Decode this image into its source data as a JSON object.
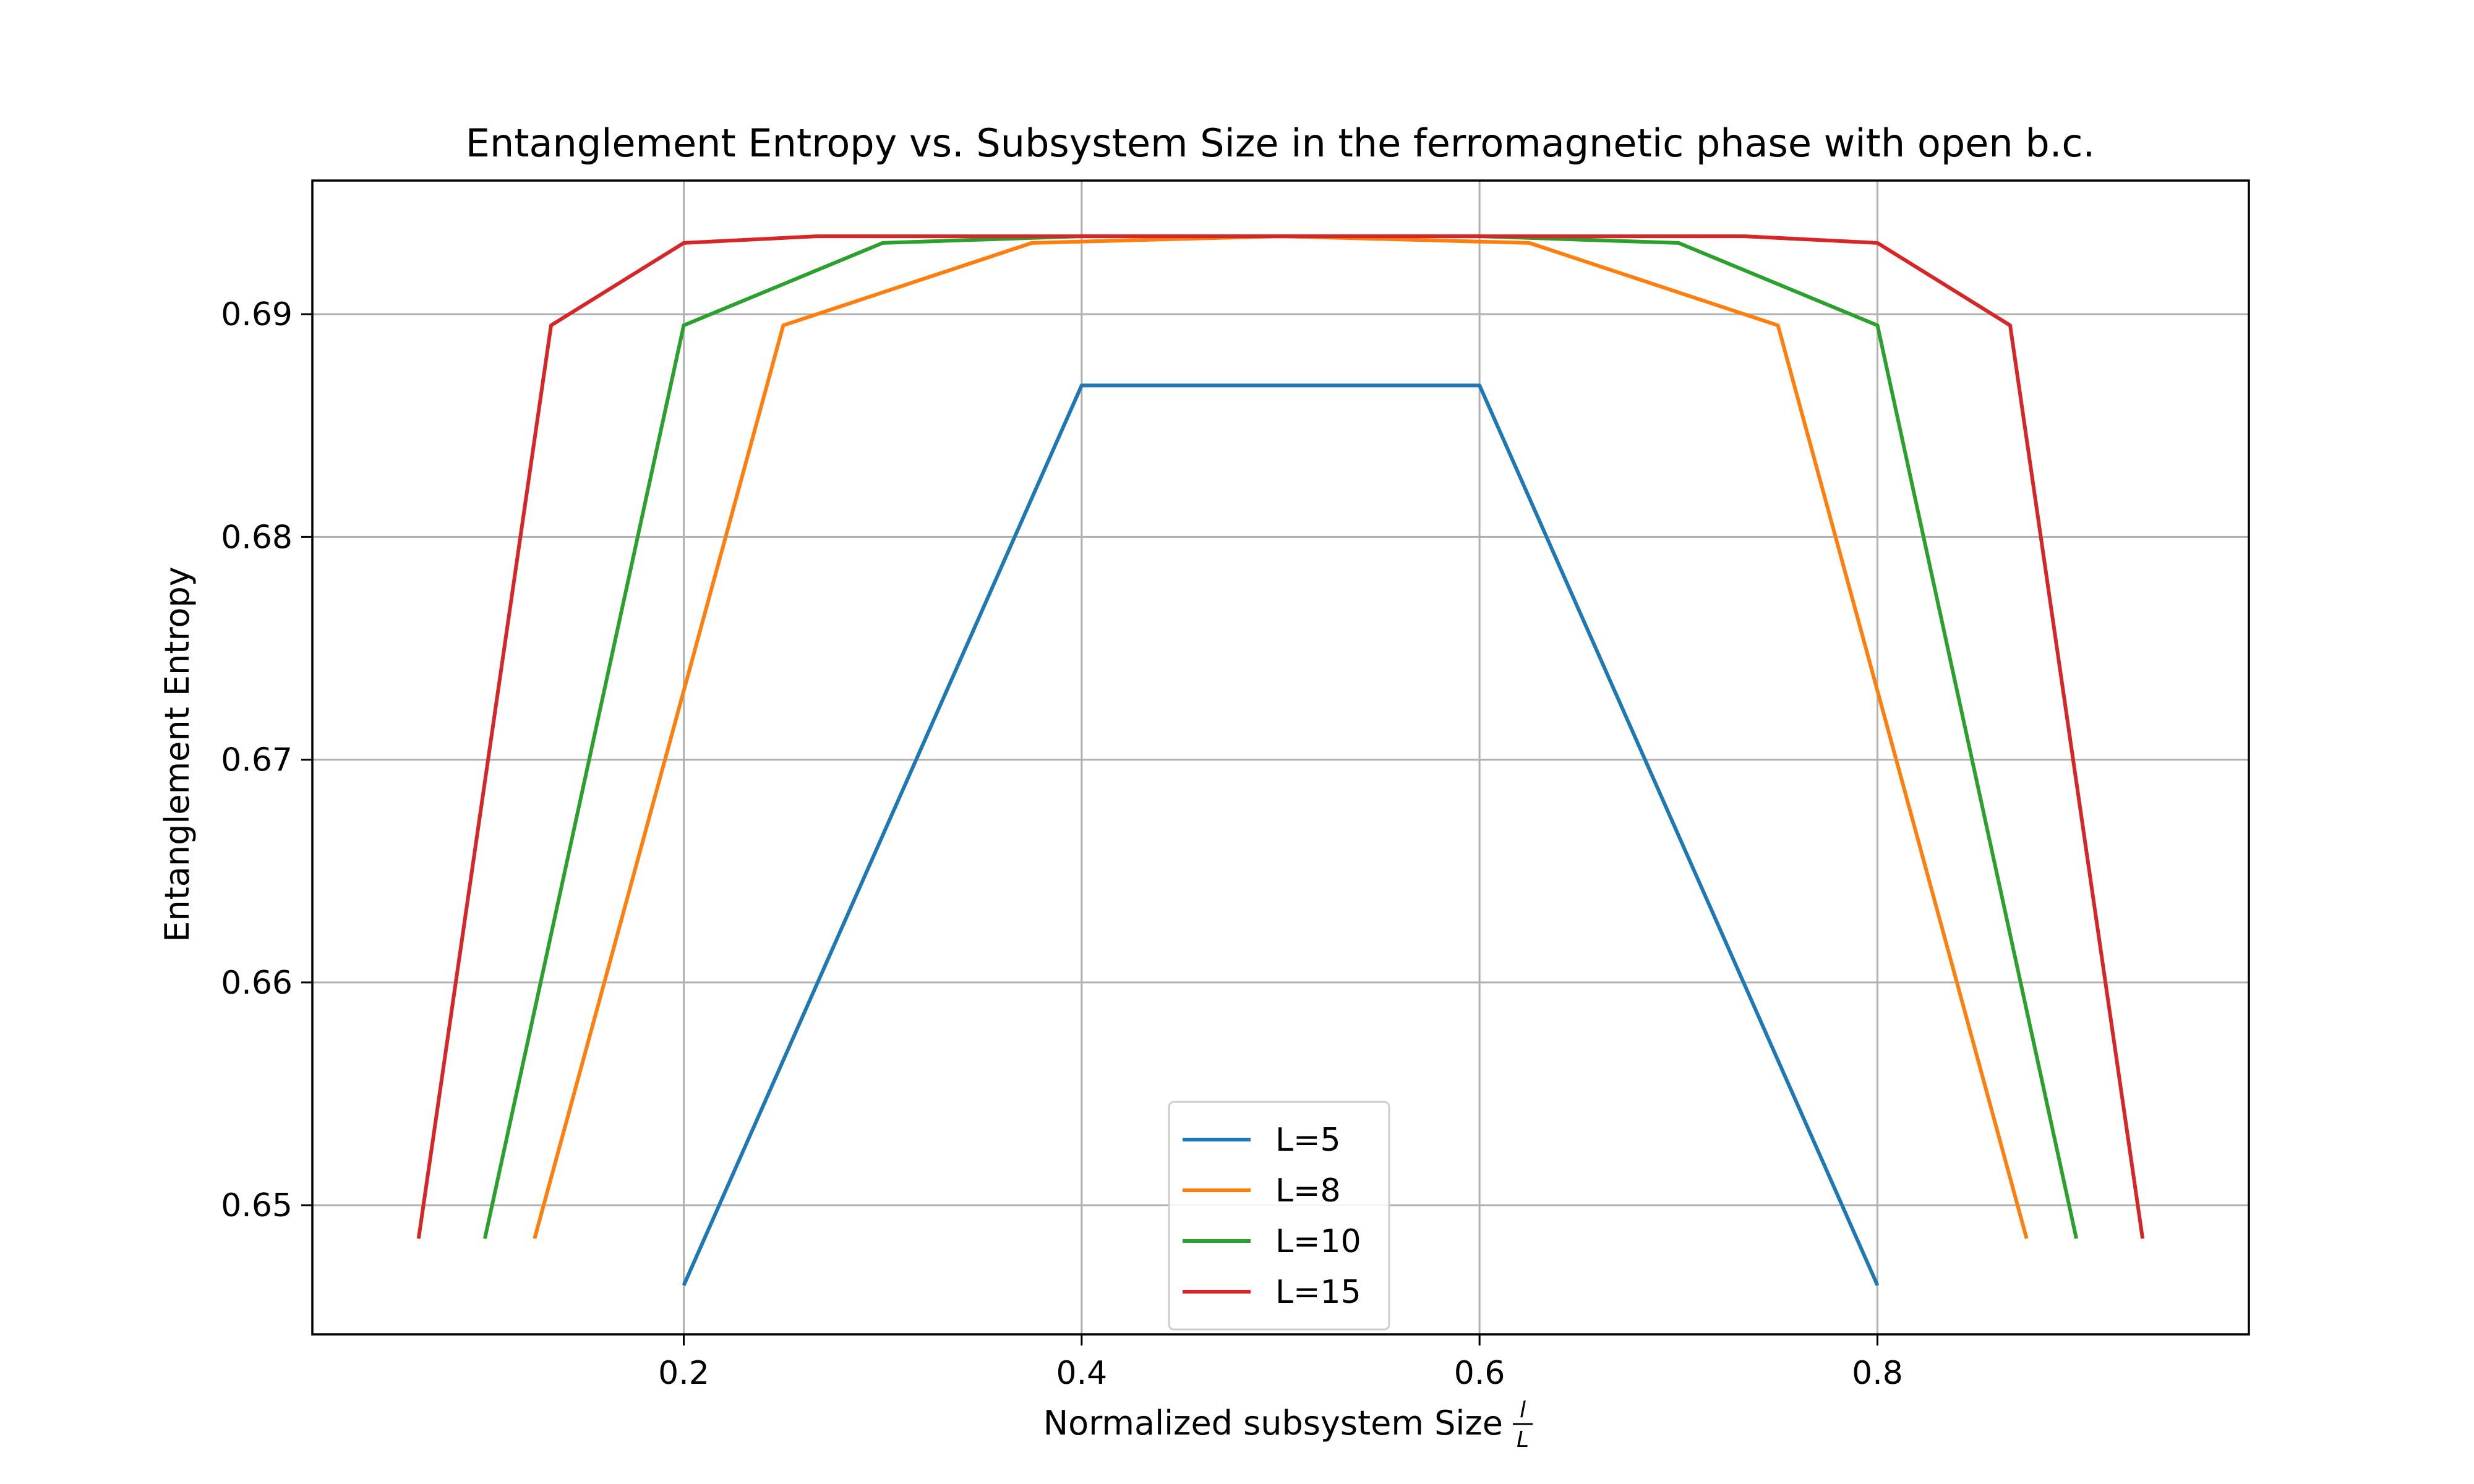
{
  "chart_data": {
    "type": "line",
    "title": "Entanglement Entropy vs. Subsystem Size in the ferromagnetic phase with open b.c.",
    "xlabel": "Normalized subsystem Size",
    "xlabel_fraction": {
      "numerator": "l",
      "denominator": "L"
    },
    "ylabel": "Entanglement Entropy",
    "xlim": [
      0.0133,
      0.9867
    ],
    "ylim": [
      0.6442,
      0.696
    ],
    "xticks": [
      0.2,
      0.4,
      0.6,
      0.8
    ],
    "xtick_labels": [
      "0.2",
      "0.4",
      "0.6",
      "0.8"
    ],
    "yticks": [
      0.65,
      0.66,
      0.67,
      0.68,
      0.69
    ],
    "ytick_labels": [
      "0.65",
      "0.66",
      "0.67",
      "0.68",
      "0.69"
    ],
    "grid": true,
    "legend_position": "lower-center",
    "series": [
      {
        "name": "L=5",
        "color": "#1f77b4",
        "x": [
          0.2,
          0.4,
          0.6,
          0.8
        ],
        "y": [
          0.6464,
          0.6868,
          0.6868,
          0.6464
        ]
      },
      {
        "name": "L=8",
        "color": "#ff7f0e",
        "x": [
          0.125,
          0.25,
          0.375,
          0.5,
          0.625,
          0.75,
          0.875
        ],
        "y": [
          0.6485,
          0.6895,
          0.6932,
          0.6935,
          0.6932,
          0.6895,
          0.6485
        ]
      },
      {
        "name": "L=10",
        "color": "#2ca02c",
        "x": [
          0.1,
          0.2,
          0.3,
          0.4,
          0.5,
          0.6,
          0.7,
          0.8,
          0.9
        ],
        "y": [
          0.6485,
          0.6895,
          0.6932,
          0.6935,
          0.6935,
          0.6935,
          0.6932,
          0.6895,
          0.6485
        ]
      },
      {
        "name": "L=15",
        "color": "#d62728",
        "x": [
          0.0667,
          0.1333,
          0.2,
          0.2667,
          0.3333,
          0.4,
          0.4667,
          0.5333,
          0.6,
          0.6667,
          0.7333,
          0.8,
          0.8667,
          0.9333
        ],
        "y": [
          0.6485,
          0.6895,
          0.6932,
          0.6935,
          0.6935,
          0.6935,
          0.6935,
          0.6935,
          0.6935,
          0.6935,
          0.6935,
          0.6932,
          0.6895,
          0.6485
        ]
      }
    ]
  }
}
